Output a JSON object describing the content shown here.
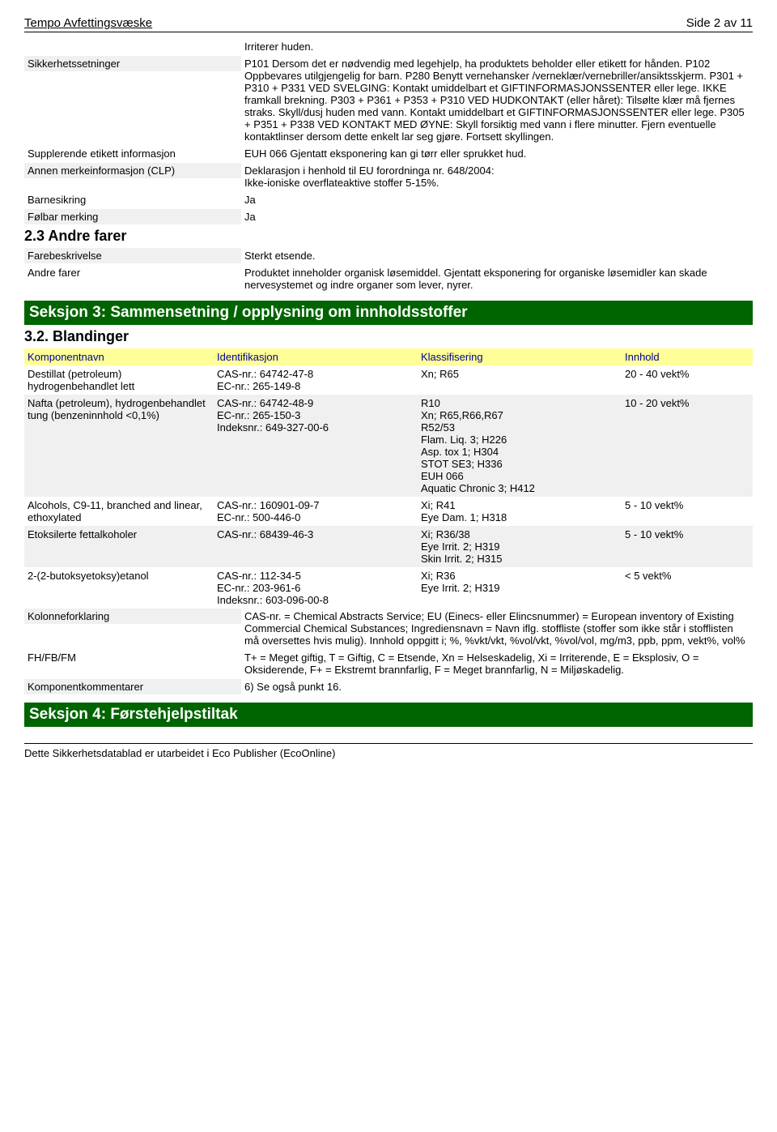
{
  "header": {
    "title": "Tempo Avfettingsvæske",
    "page": "Side 2 av 11"
  },
  "rows": [
    {
      "label": "",
      "value_label": "Irriterer huden.",
      "shaded": false,
      "italic_value": false
    },
    {
      "label": "Sikkerhetssetninger",
      "value_label": "P101 Dersom det er nødvendig med legehjelp, ha produktets beholder eller etikett for hånden. P102 Oppbevares utilgjengelig for barn. P280 Benytt vernehansker /verneklær/vernebriller/ansiktsskjerm. P301 + P310 + P331 VED SVELGING: Kontakt umiddelbart et GIFTINFORMASJONSSENTER eller lege. IKKE framkall brekning. P303 + P361 + P353 + P310 VED HUDKONTAKT (eller håret): Tilsølte klær må fjernes straks. Skyll/dusj huden med vann. Kontakt umiddelbart et GIFTINFORMASJONSSENTER eller lege. P305 + P351 + P338 VED KONTAKT MED ØYNE: Skyll forsiktig med vann i flere minutter. Fjern eventuelle kontaktlinser dersom dette enkelt lar seg gjøre. Fortsett skyllingen.",
      "shaded": true
    },
    {
      "label": "Supplerende etikett informasjon",
      "value_label": "EUH 066 Gjentatt eksponering kan gi tørr eller sprukket hud.",
      "shaded": false
    },
    {
      "label": "Annen merkeinformasjon (CLP)",
      "value_label": "Deklarasjon i henhold til EU forordninga nr. 648/2004:\nIkke-ioniske overflateaktive stoffer 5-15%.",
      "shaded": true
    },
    {
      "label": "Barnesikring",
      "value_label": "Ja",
      "shaded": false
    },
    {
      "label": "Følbar merking",
      "value_label": "Ja",
      "shaded": true
    }
  ],
  "subheading1": "2.3 Andre farer",
  "rows2": [
    {
      "label": "Farebeskrivelse",
      "value_label": "Sterkt etsende.",
      "shaded": true
    },
    {
      "label": "Andre farer",
      "value_label": "Produktet inneholder organisk løsemiddel. Gjentatt eksponering for organiske løsemidler kan skade nervesystemet og indre organer som lever, nyrer.",
      "shaded": false
    }
  ],
  "section3": {
    "title": "Seksjon 3: Sammensetning / opplysning om innholdsstoffer",
    "sub": "3.2. Blandinger",
    "headers": [
      "Komponentnavn",
      "Identifikasjon",
      "Klassifisering",
      "Innhold"
    ],
    "rows": [
      {
        "c0": "Destillat (petroleum) hydrogenbehandlet lett",
        "c1": "CAS-nr.: 64742-47-8\nEC-nr.: 265-149-8",
        "c2": "Xn; R65",
        "c3": "20 - 40 vekt%"
      },
      {
        "c0": "Nafta (petroleum), hydrogenbehandlet tung (benzeninnhold <0,1%)",
        "c1": "CAS-nr.: 64742-48-9\nEC-nr.: 265-150-3\nIndeksnr.: 649-327-00-6",
        "c2": "R10\nXn; R65,R66,R67\nR52/53\nFlam. Liq. 3; H226\nAsp. tox 1; H304\nSTOT SE3; H336\nEUH 066\nAquatic Chronic 3; H412",
        "c3": "10 - 20 vekt%"
      },
      {
        "c0": "Alcohols, C9-11, branched and linear, ethoxylated",
        "c1": "CAS-nr.: 160901-09-7\nEC-nr.: 500-446-0",
        "c2": "Xi; R41\nEye Dam. 1; H318",
        "c3": "5 - 10 vekt%"
      },
      {
        "c0": "Etoksilerte fettalkoholer",
        "c1": "CAS-nr.: 68439-46-3",
        "c2": "Xi; R36/38\nEye Irrit. 2; H319\nSkin Irrit. 2; H315",
        "c3": "5 - 10 vekt%"
      },
      {
        "c0": "2-(2-butoksyetoksy)etanol",
        "c1": "CAS-nr.: 112-34-5\nEC-nr.: 203-961-6\nIndeksnr.: 603-096-00-8",
        "c2": "Xi; R36\nEye Irrit. 2; H319",
        "c3": "< 5 vekt%"
      }
    ],
    "footer_rows": [
      {
        "label": "Kolonneforklaring",
        "value": "CAS-nr. = Chemical Abstracts Service; EU (Einecs- eller Elincsnummer) = European inventory of Existing Commercial Chemical Substances; Ingrediensnavn = Navn iflg. stoffliste (stoffer som ikke står i stofflisten må oversettes hvis mulig). Innhold oppgitt i; %, %vkt/vkt, %vol/vkt, %vol/vol, mg/m3, ppb, ppm, vekt%, vol%"
      },
      {
        "label": "FH/FB/FM",
        "value": "T+ = Meget giftig, T = Giftig, C = Etsende, Xn = Helseskadelig, Xi = Irriterende, E = Eksplosiv, O = Oksiderende, F+ = Ekstremt brannfarlig, F = Meget brannfarlig, N = Miljøskadelig."
      },
      {
        "label": "Komponentkommentarer",
        "value": "6) Se også punkt 16."
      }
    ]
  },
  "section4": {
    "title": "Seksjon 4: Førstehjelpstiltak"
  },
  "footer": "Dette Sikkerhetsdatablad er utarbeidet i Eco Publisher (EcoOnline)"
}
